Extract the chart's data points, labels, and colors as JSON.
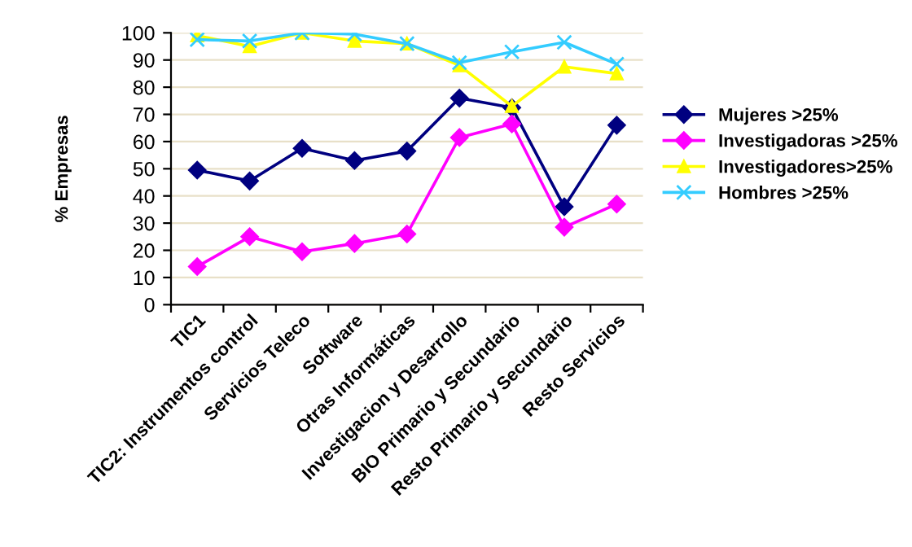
{
  "chart_data": {
    "type": "line",
    "ylabel": "% Empresas",
    "categories": [
      "TIC1",
      "TIC2: Instrumentos control",
      "Servicios Teleco",
      "Software",
      "Otras Informáticas",
      "Investigacion y Desarrollo",
      "BIO Primario y Secundario",
      "Resto Primario y Secundario",
      "Resto Servicios"
    ],
    "series": [
      {
        "name": "Mujeres >25%",
        "color": "#000080",
        "marker": "diamond",
        "values": [
          49.5,
          45.5,
          57.5,
          53,
          56.5,
          76,
          72.5,
          36,
          66
        ]
      },
      {
        "name": "Investigadoras >25%",
        "color": "#ff00ff",
        "marker": "diamond",
        "values": [
          14,
          25,
          19.5,
          22.5,
          26,
          61.5,
          66.5,
          28.5,
          37
        ]
      },
      {
        "name": "Investigadores>25%",
        "color": "#ffff00",
        "marker": "triangle",
        "values": [
          99,
          95,
          100,
          97,
          96,
          88,
          73,
          87.5,
          85
        ]
      },
      {
        "name": "Hombres >25%",
        "color": "#33ccff",
        "marker": "cross",
        "values": [
          97.5,
          97,
          100,
          99.5,
          96,
          89,
          93,
          96.5,
          88.5
        ]
      }
    ],
    "ylim": [
      0,
      100
    ],
    "yticks": [
      0,
      10,
      20,
      30,
      40,
      50,
      60,
      70,
      80,
      90,
      100
    ],
    "grid": "y",
    "legend": "right",
    "line_style": "solid"
  }
}
